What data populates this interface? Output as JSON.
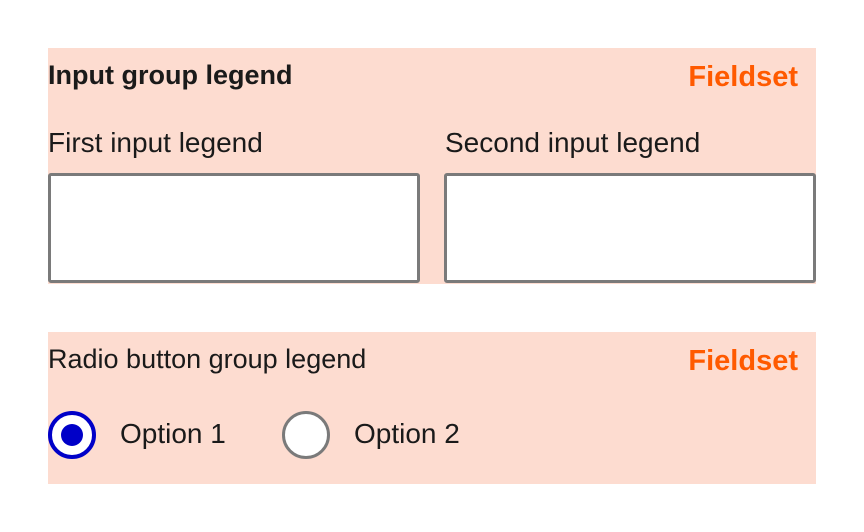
{
  "input_fieldset": {
    "tag": "Fieldset",
    "legend": "Input group legend",
    "inputs": [
      {
        "legend": "First input legend",
        "value": ""
      },
      {
        "legend": "Second input legend",
        "value": ""
      }
    ]
  },
  "radio_fieldset": {
    "tag": "Fieldset",
    "legend": "Radio button group legend",
    "options": [
      {
        "label": "Option 1",
        "checked": true
      },
      {
        "label": "Option 2",
        "checked": false
      }
    ]
  },
  "colors": {
    "fieldset_background": "#fddcd0",
    "fieldset_tag": "#ff5a00",
    "radio_selected": "#0000c8",
    "input_border": "#7a7a7a"
  }
}
